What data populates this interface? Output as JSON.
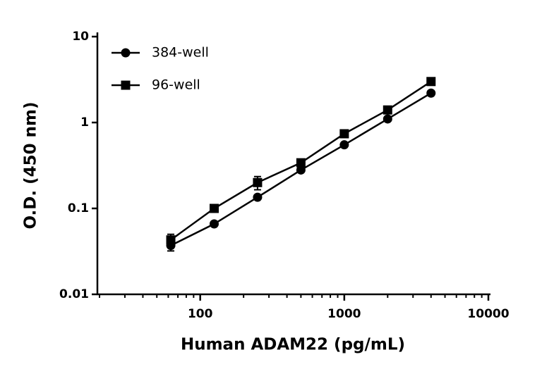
{
  "chart_data": {
    "type": "scatter",
    "xlabel": "Human ADAM22 (pg/mL)",
    "ylabel": "O.D. (450 nm)",
    "x": [
      62.5,
      125,
      250,
      500,
      1000,
      2000,
      4000
    ],
    "series": [
      {
        "name": "384-well",
        "marker": "circle",
        "color": "#000000",
        "values": [
          0.037,
          0.066,
          0.135,
          0.28,
          0.55,
          1.1,
          2.2
        ],
        "errors": [
          0.005,
          null,
          null,
          null,
          null,
          null,
          null
        ]
      },
      {
        "name": "96-well",
        "marker": "square",
        "color": "#000000",
        "values": [
          0.043,
          0.1,
          0.2,
          0.34,
          0.74,
          1.4,
          3.0
        ],
        "errors": [
          0.007,
          null,
          0.035,
          null,
          null,
          null,
          null
        ]
      }
    ],
    "xscale": "log",
    "yscale": "log",
    "xlim": [
      20,
      10000
    ],
    "ylim": [
      0.01,
      10
    ],
    "xticks": [
      100,
      1000,
      10000
    ],
    "yticks": [
      0.01,
      0.1,
      1,
      10
    ],
    "legend": "upper left"
  }
}
